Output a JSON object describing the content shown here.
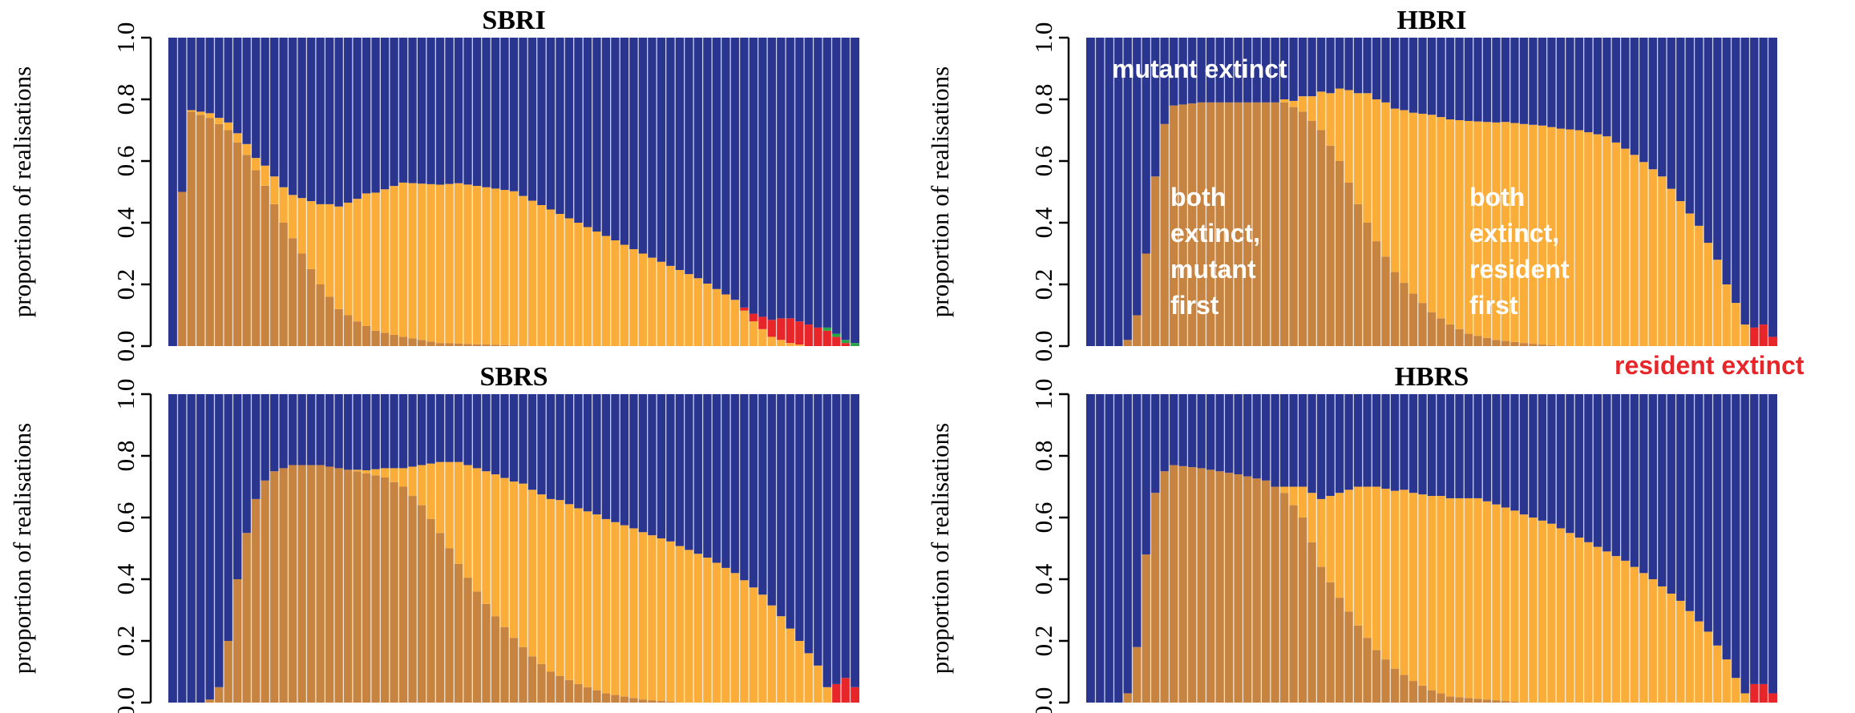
{
  "chart_data": [
    {
      "type": "bar",
      "title": "SBRI",
      "ylabel": "proportion of realisations",
      "ylim": [
        0,
        1
      ],
      "yticks": [
        "0.0",
        "0.2",
        "0.4",
        "0.6",
        "0.8",
        "1.0"
      ],
      "stacked": true,
      "n_bars": 75,
      "series": [
        {
          "name": "both extinct, mutant first",
          "color": "#c78440",
          "knots": [
            [
              1,
              0
            ],
            [
              2,
              0.5
            ],
            [
              3,
              0.76
            ],
            [
              5,
              0.74
            ],
            [
              7,
              0.7
            ],
            [
              9,
              0.62
            ],
            [
              11,
              0.52
            ],
            [
              13,
              0.4
            ],
            [
              15,
              0.3
            ],
            [
              17,
              0.2
            ],
            [
              19,
              0.12
            ],
            [
              21,
              0.08
            ],
            [
              23,
              0.05
            ],
            [
              26,
              0.03
            ],
            [
              30,
              0.01
            ],
            [
              35,
              0.005
            ],
            [
              40,
              0
            ],
            [
              75,
              0
            ]
          ]
        },
        {
          "name": "both extinct, resident first",
          "color": "#fbad3a",
          "knots": [
            [
              1,
              0
            ],
            [
              2,
              0
            ],
            [
              10,
              0.04
            ],
            [
              14,
              0.14
            ],
            [
              18,
              0.3
            ],
            [
              22,
              0.43
            ],
            [
              26,
              0.5
            ],
            [
              32,
              0.52
            ],
            [
              38,
              0.5
            ],
            [
              45,
              0.4
            ],
            [
              52,
              0.3
            ],
            [
              58,
              0.22
            ],
            [
              62,
              0.15
            ],
            [
              64,
              0.08
            ],
            [
              66,
              0.03
            ],
            [
              68,
              0.01
            ],
            [
              70,
              0
            ],
            [
              75,
              0
            ]
          ]
        },
        {
          "name": "resident extinct",
          "color": "#e8262a",
          "knots": [
            [
              1,
              0
            ],
            [
              62,
              0
            ],
            [
              63,
              0.01
            ],
            [
              65,
              0.04
            ],
            [
              67,
              0.07
            ],
            [
              68,
              0.08
            ],
            [
              70,
              0.07
            ],
            [
              72,
              0.05
            ],
            [
              73,
              0.03
            ],
            [
              74,
              0.01
            ],
            [
              75,
              0
            ]
          ]
        },
        {
          "name": "",
          "color": "#27a745",
          "knots": [
            [
              1,
              0
            ],
            [
              71,
              0
            ],
            [
              72,
              0.01
            ],
            [
              75,
              0.01
            ]
          ]
        }
      ],
      "top_series": {
        "name": "mutant extinct",
        "color": "#2a3590"
      }
    },
    {
      "type": "bar",
      "title": "HBRI",
      "ylabel": "proportion of realisations",
      "ylim": [
        0,
        1
      ],
      "yticks": [
        "0.0",
        "0.2",
        "0.4",
        "0.6",
        "0.8",
        "1.0"
      ],
      "stacked": true,
      "n_bars": 75,
      "series": [
        {
          "name": "both extinct, mutant first",
          "color": "#c78440",
          "knots": [
            [
              1,
              0
            ],
            [
              4,
              0
            ],
            [
              5,
              0.02
            ],
            [
              6,
              0.1
            ],
            [
              7,
              0.3
            ],
            [
              8,
              0.55
            ],
            [
              9,
              0.72
            ],
            [
              10,
              0.78
            ],
            [
              13,
              0.79
            ],
            [
              22,
              0.79
            ],
            [
              24,
              0.76
            ],
            [
              26,
              0.7
            ],
            [
              28,
              0.6
            ],
            [
              30,
              0.46
            ],
            [
              32,
              0.34
            ],
            [
              34,
              0.24
            ],
            [
              36,
              0.17
            ],
            [
              38,
              0.11
            ],
            [
              40,
              0.07
            ],
            [
              42,
              0.04
            ],
            [
              45,
              0.02
            ],
            [
              48,
              0.01
            ],
            [
              52,
              0
            ],
            [
              75,
              0
            ]
          ]
        },
        {
          "name": "both extinct, resident first",
          "color": "#fbad3a",
          "knots": [
            [
              1,
              0
            ],
            [
              21,
              0
            ],
            [
              23,
              0.02
            ],
            [
              25,
              0.08
            ],
            [
              27,
              0.17
            ],
            [
              29,
              0.3
            ],
            [
              31,
              0.42
            ],
            [
              33,
              0.5
            ],
            [
              35,
              0.56
            ],
            [
              38,
              0.64
            ],
            [
              42,
              0.69
            ],
            [
              46,
              0.71
            ],
            [
              50,
              0.71
            ],
            [
              54,
              0.7
            ],
            [
              57,
              0.68
            ],
            [
              60,
              0.62
            ],
            [
              63,
              0.55
            ],
            [
              65,
              0.47
            ],
            [
              67,
              0.39
            ],
            [
              69,
              0.28
            ],
            [
              70,
              0.2
            ],
            [
              71,
              0.14
            ],
            [
              72,
              0.07
            ],
            [
              73,
              0
            ],
            [
              75,
              0
            ]
          ]
        },
        {
          "name": "resident extinct",
          "color": "#e8262a",
          "knots": [
            [
              1,
              0
            ],
            [
              72,
              0
            ],
            [
              73,
              0.06
            ],
            [
              74,
              0.07
            ],
            [
              75,
              0.03
            ]
          ]
        }
      ],
      "top_series": {
        "name": "mutant extinct",
        "color": "#2a3590"
      }
    },
    {
      "type": "bar",
      "title": "SBRS",
      "ylabel": "proportion of realisations",
      "ylim": [
        0,
        1
      ],
      "yticks": [
        "0.0",
        "0.2",
        "0.4",
        "0.6",
        "0.8",
        "1.0"
      ],
      "stacked": true,
      "n_bars": 75,
      "series": [
        {
          "name": "both extinct, mutant first",
          "color": "#c78440",
          "knots": [
            [
              1,
              0
            ],
            [
              4,
              0
            ],
            [
              5,
              0.01
            ],
            [
              6,
              0.05
            ],
            [
              7,
              0.2
            ],
            [
              8,
              0.4
            ],
            [
              9,
              0.55
            ],
            [
              10,
              0.66
            ],
            [
              11,
              0.72
            ],
            [
              12,
              0.75
            ],
            [
              14,
              0.77
            ],
            [
              17,
              0.77
            ],
            [
              21,
              0.75
            ],
            [
              24,
              0.73
            ],
            [
              26,
              0.7
            ],
            [
              28,
              0.64
            ],
            [
              30,
              0.55
            ],
            [
              32,
              0.45
            ],
            [
              34,
              0.36
            ],
            [
              36,
              0.28
            ],
            [
              38,
              0.21
            ],
            [
              40,
              0.15
            ],
            [
              42,
              0.1
            ],
            [
              45,
              0.06
            ],
            [
              48,
              0.03
            ],
            [
              52,
              0.01
            ],
            [
              56,
              0
            ],
            [
              75,
              0
            ]
          ]
        },
        {
          "name": "both extinct, resident first",
          "color": "#fbad3a",
          "knots": [
            [
              1,
              0
            ],
            [
              20,
              0
            ],
            [
              22,
              0.01
            ],
            [
              24,
              0.03
            ],
            [
              26,
              0.06
            ],
            [
              28,
              0.13
            ],
            [
              30,
              0.23
            ],
            [
              32,
              0.33
            ],
            [
              34,
              0.4
            ],
            [
              36,
              0.46
            ],
            [
              39,
              0.53
            ],
            [
              43,
              0.57
            ],
            [
              47,
              0.57
            ],
            [
              51,
              0.55
            ],
            [
              55,
              0.52
            ],
            [
              59,
              0.47
            ],
            [
              62,
              0.42
            ],
            [
              65,
              0.35
            ],
            [
              67,
              0.28
            ],
            [
              69,
              0.2
            ],
            [
              71,
              0.12
            ],
            [
              72,
              0.05
            ],
            [
              73,
              0
            ],
            [
              75,
              0
            ]
          ]
        },
        {
          "name": "resident extinct",
          "color": "#e8262a",
          "knots": [
            [
              1,
              0
            ],
            [
              72,
              0
            ],
            [
              73,
              0.06
            ],
            [
              74,
              0.08
            ],
            [
              75,
              0.05
            ]
          ]
        }
      ],
      "top_series": {
        "name": "mutant extinct",
        "color": "#2a3590"
      }
    },
    {
      "type": "bar",
      "title": "HBRS",
      "ylabel": "proportion of realisations",
      "ylim": [
        0,
        1
      ],
      "yticks": [
        "0.0",
        "0.2",
        "0.4",
        "0.6",
        "0.8",
        "1.0"
      ],
      "stacked": true,
      "n_bars": 75,
      "series": [
        {
          "name": "both extinct, mutant first",
          "color": "#c78440",
          "knots": [
            [
              1,
              0
            ],
            [
              4,
              0
            ],
            [
              5,
              0.03
            ],
            [
              6,
              0.18
            ],
            [
              7,
              0.48
            ],
            [
              8,
              0.68
            ],
            [
              9,
              0.75
            ],
            [
              10,
              0.77
            ],
            [
              13,
              0.76
            ],
            [
              17,
              0.74
            ],
            [
              20,
              0.72
            ],
            [
              22,
              0.68
            ],
            [
              24,
              0.6
            ],
            [
              25,
              0.52
            ],
            [
              26,
              0.44
            ],
            [
              28,
              0.34
            ],
            [
              30,
              0.25
            ],
            [
              32,
              0.17
            ],
            [
              34,
              0.11
            ],
            [
              36,
              0.07
            ],
            [
              38,
              0.04
            ],
            [
              40,
              0.02
            ],
            [
              44,
              0.01
            ],
            [
              48,
              0
            ],
            [
              75,
              0
            ]
          ]
        },
        {
          "name": "both extinct, resident first",
          "color": "#fbad3a",
          "knots": [
            [
              1,
              0
            ],
            [
              21,
              0
            ],
            [
              22,
              0.02
            ],
            [
              24,
              0.1
            ],
            [
              26,
              0.22
            ],
            [
              28,
              0.34
            ],
            [
              30,
              0.45
            ],
            [
              32,
              0.53
            ],
            [
              35,
              0.6
            ],
            [
              39,
              0.64
            ],
            [
              43,
              0.65
            ],
            [
              47,
              0.62
            ],
            [
              51,
              0.58
            ],
            [
              55,
              0.52
            ],
            [
              59,
              0.46
            ],
            [
              62,
              0.4
            ],
            [
              65,
              0.33
            ],
            [
              68,
              0.23
            ],
            [
              70,
              0.14
            ],
            [
              71,
              0.08
            ],
            [
              72,
              0.03
            ],
            [
              73,
              0
            ],
            [
              75,
              0
            ]
          ]
        },
        {
          "name": "resident extinct",
          "color": "#e8262a",
          "knots": [
            [
              1,
              0
            ],
            [
              72,
              0
            ],
            [
              73,
              0.06
            ],
            [
              74,
              0.06
            ],
            [
              75,
              0.03
            ]
          ]
        }
      ],
      "top_series": {
        "name": "mutant extinct",
        "color": "#2a3590"
      }
    }
  ],
  "annotations": {
    "mutant_extinct": "mutant extinct",
    "mutant_first": [
      "both",
      "extinct,",
      "mutant",
      "first"
    ],
    "resident_first": [
      "both",
      "extinct,",
      "resident",
      "first"
    ],
    "resident_extinct": "resident extinct"
  }
}
